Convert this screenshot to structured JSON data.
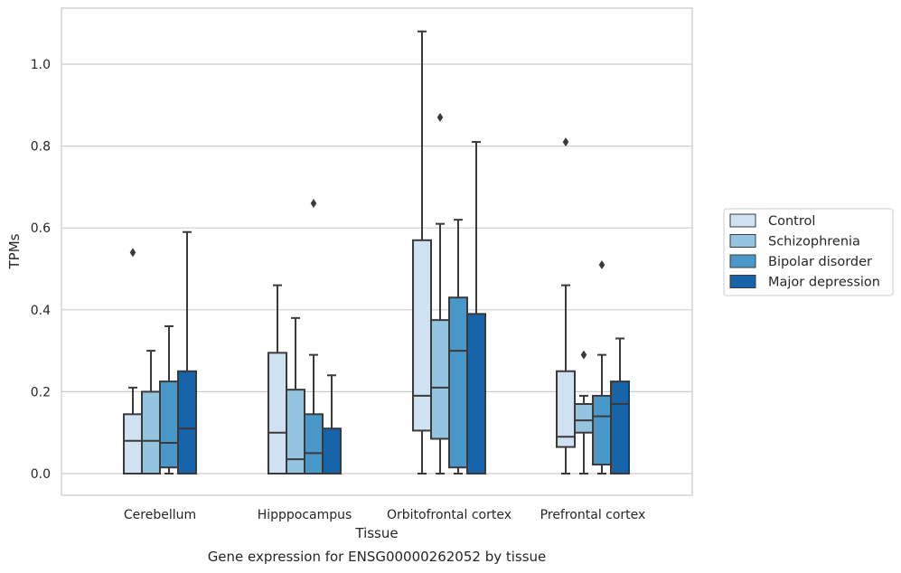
{
  "chart_data": {
    "type": "box",
    "xlabel": "Tissue",
    "ylabel": "TPMs",
    "caption": "Gene expression for ENSG00000262052 by tissue",
    "categories": [
      "Cerebellum",
      "Hipppocampus",
      "Orbitofrontal cortex",
      "Prefrontal cortex"
    ],
    "ylim": [
      -0.05,
      1.135
    ],
    "yticks": [
      0.0,
      0.2,
      0.4,
      0.6,
      0.8,
      1.0
    ],
    "ytick_labels": [
      "0.0",
      "0.2",
      "0.4",
      "0.6",
      "0.8",
      "1.0"
    ],
    "grid": "horizontal",
    "legend_position": "right",
    "series": [
      {
        "name": "Control",
        "color": "#d0e1f2",
        "boxes": [
          {
            "whislo": 0.0,
            "q1": 0.0,
            "med": 0.08,
            "q3": 0.145,
            "whishi": 0.21,
            "fliers": [
              0.54
            ]
          },
          {
            "whislo": 0.0,
            "q1": 0.0,
            "med": 0.1,
            "q3": 0.295,
            "whishi": 0.46,
            "fliers": []
          },
          {
            "whislo": 0.0,
            "q1": 0.105,
            "med": 0.19,
            "q3": 0.57,
            "whishi": 1.08,
            "fliers": []
          },
          {
            "whislo": 0.0,
            "q1": 0.065,
            "med": 0.09,
            "q3": 0.25,
            "whishi": 0.46,
            "fliers": [
              0.81
            ]
          }
        ]
      },
      {
        "name": "Schizophrenia",
        "color": "#94c4df",
        "boxes": [
          {
            "whislo": 0.0,
            "q1": 0.0,
            "med": 0.08,
            "q3": 0.2,
            "whishi": 0.3,
            "fliers": []
          },
          {
            "whislo": 0.0,
            "q1": 0.0,
            "med": 0.035,
            "q3": 0.205,
            "whishi": 0.38,
            "fliers": []
          },
          {
            "whislo": 0.0,
            "q1": 0.085,
            "med": 0.21,
            "q3": 0.375,
            "whishi": 0.61,
            "fliers": [
              0.87
            ]
          },
          {
            "whislo": 0.0,
            "q1": 0.1,
            "med": 0.13,
            "q3": 0.17,
            "whishi": 0.19,
            "fliers": [
              0.29
            ]
          }
        ]
      },
      {
        "name": "Bipolar disorder",
        "color": "#4a98c9",
        "boxes": [
          {
            "whislo": 0.0,
            "q1": 0.015,
            "med": 0.075,
            "q3": 0.225,
            "whishi": 0.36,
            "fliers": []
          },
          {
            "whislo": 0.0,
            "q1": 0.0,
            "med": 0.05,
            "q3": 0.145,
            "whishi": 0.29,
            "fliers": [
              0.66
            ]
          },
          {
            "whislo": 0.0,
            "q1": 0.015,
            "med": 0.3,
            "q3": 0.43,
            "whishi": 0.62,
            "fliers": []
          },
          {
            "whislo": 0.0,
            "q1": 0.022,
            "med": 0.14,
            "q3": 0.19,
            "whishi": 0.29,
            "fliers": [
              0.51
            ]
          }
        ]
      },
      {
        "name": "Major depression",
        "color": "#1764ab",
        "boxes": [
          {
            "whislo": 0.0,
            "q1": 0.0,
            "med": 0.11,
            "q3": 0.25,
            "whishi": 0.59,
            "fliers": []
          },
          {
            "whislo": 0.0,
            "q1": 0.0,
            "med": 0.0,
            "q3": 0.11,
            "whishi": 0.24,
            "fliers": []
          },
          {
            "whislo": 0.0,
            "q1": 0.0,
            "med": 0.0,
            "q3": 0.39,
            "whishi": 0.81,
            "fliers": []
          },
          {
            "whislo": 0.0,
            "q1": 0.0,
            "med": 0.17,
            "q3": 0.225,
            "whishi": 0.33,
            "fliers": []
          }
        ]
      }
    ]
  }
}
